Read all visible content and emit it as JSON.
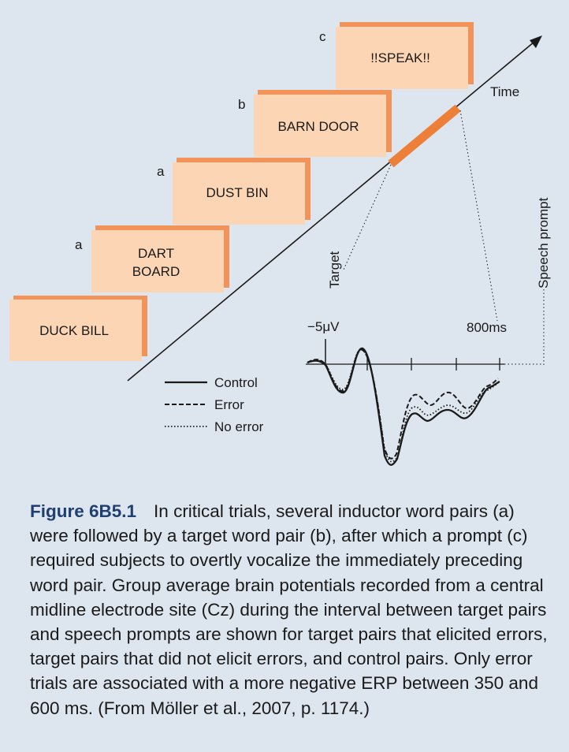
{
  "trials": [
    {
      "letter": "",
      "lines": [
        "DUCK BILL"
      ]
    },
    {
      "letter": "a",
      "lines": [
        "DART",
        "BOARD"
      ]
    },
    {
      "letter": "a",
      "lines": [
        "DUST BIN"
      ]
    },
    {
      "letter": "b",
      "lines": [
        "BARN DOOR"
      ]
    },
    {
      "letter": "c",
      "lines": [
        "!!SPEAK!!"
      ]
    }
  ],
  "axis": {
    "time_label": "Time",
    "target_label": "Target",
    "speech_prompt_label": "Speech prompt",
    "voltage_label": "−5μV",
    "ms_label": "800ms"
  },
  "legend": [
    {
      "name": "Control",
      "style": "solid"
    },
    {
      "name": "Error",
      "style": "dashed"
    },
    {
      "name": "No error",
      "style": "dotted"
    }
  ],
  "colors": {
    "background": "#dde5ee",
    "card_fill": "#fcd6b4",
    "card_shadow": "#f2935a",
    "interval_bar": "#ee7f38",
    "caption_label": "#1f3f73"
  },
  "caption": {
    "label": "Figure 6B5.1",
    "text": "In critical trials, several inductor word pairs (a) were followed by a target word pair (b), after which a prompt (c) required subjects to overtly vocalize the immediately preceding word pair. Group average brain potentials recorded from a central midline electrode site (Cz) during the interval between target pairs and speech prompts are shown for target pairs that elicited errors, target pairs that did not elicit errors, and control pairs. Only error trials are associated with a more negative ERP between 350 and 600 ms. (From Möller et al., 2007, p. 1174.)"
  }
}
